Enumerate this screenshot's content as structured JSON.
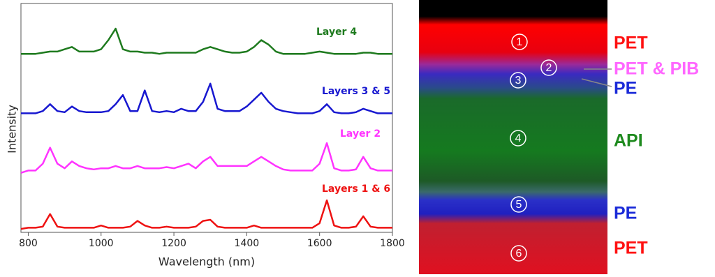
{
  "chart_data": {
    "type": "line",
    "xlabel": "Wavelength (nm)",
    "ylabel": "Intensity",
    "xlim": [
      780,
      1800
    ],
    "xticks": [
      800,
      1000,
      1200,
      1400,
      1600,
      1800
    ],
    "ylim": [
      0,
      100
    ],
    "x": [
      780,
      800,
      820,
      840,
      860,
      880,
      900,
      920,
      940,
      960,
      980,
      1000,
      1020,
      1040,
      1060,
      1080,
      1100,
      1120,
      1140,
      1160,
      1180,
      1200,
      1220,
      1240,
      1260,
      1280,
      1300,
      1320,
      1340,
      1360,
      1380,
      1400,
      1420,
      1440,
      1460,
      1480,
      1500,
      1520,
      1540,
      1560,
      1580,
      1600,
      1620,
      1640,
      1660,
      1680,
      1700,
      1720,
      1740,
      1760,
      1780,
      1800
    ],
    "series": [
      {
        "name": "Layer 4",
        "color": "#1e7a1e",
        "values": [
          78,
          78,
          78,
          78.5,
          79,
          79,
          80,
          81,
          79,
          79,
          79,
          80,
          84,
          89,
          80,
          79,
          79,
          78.5,
          78.5,
          78,
          78.5,
          78.5,
          78.5,
          78.5,
          78.5,
          80,
          81,
          80,
          79,
          78.5,
          78.5,
          79,
          81,
          84,
          82,
          79,
          78,
          78,
          78,
          78,
          78.5,
          79,
          78.5,
          78,
          78,
          78,
          78,
          78.5,
          78.5,
          78,
          78,
          78
        ]
      },
      {
        "name": "Layers 3 & 5",
        "color": "#1818d0",
        "values": [
          52,
          52,
          52,
          53,
          56,
          53,
          52.5,
          55,
          53,
          52.5,
          52.5,
          52.5,
          53,
          56,
          60,
          53,
          53,
          62,
          53,
          52.5,
          53,
          52.5,
          54,
          53,
          53,
          57,
          65,
          54,
          53,
          53,
          53,
          55,
          58,
          61,
          57,
          54,
          53,
          52.5,
          52,
          52,
          52,
          53,
          56,
          52.5,
          52,
          52,
          52.5,
          54,
          53,
          52,
          52,
          52
        ]
      },
      {
        "name": "Layer 2",
        "color": "#ff33ff",
        "values": [
          26,
          27,
          27,
          30,
          37,
          30,
          28,
          31,
          29,
          28,
          27.5,
          28,
          28,
          29,
          28,
          28,
          29,
          28,
          28,
          28,
          28.5,
          28,
          29,
          30,
          28,
          31,
          33,
          29,
          29,
          29,
          29,
          29,
          31,
          33,
          31,
          29,
          27.5,
          27,
          27,
          27,
          27,
          30,
          39,
          28,
          27,
          27,
          27.5,
          33,
          28,
          27,
          27,
          27
        ]
      },
      {
        "name": "Layers 1 & 6",
        "color": "#ee1111",
        "values": [
          1.5,
          2,
          2,
          2.5,
          8,
          2.5,
          2,
          2,
          2,
          2,
          2,
          3,
          2,
          2,
          2,
          2.5,
          5,
          3,
          2,
          2,
          2.5,
          2,
          2,
          2,
          2.5,
          5,
          5.5,
          2.5,
          2,
          2,
          2,
          2,
          3,
          2,
          2,
          2,
          2,
          2,
          2,
          2,
          2,
          4,
          14,
          3,
          2,
          2,
          2.5,
          7,
          2.5,
          2,
          2,
          2
        ]
      }
    ]
  },
  "layer_image": {
    "markers": [
      "1",
      "2",
      "3",
      "4",
      "5",
      "6"
    ],
    "labels": [
      {
        "text": "PET",
        "color": "#ff1010"
      },
      {
        "text": "PET & PIB",
        "color": "#ff66ff"
      },
      {
        "text": "PE",
        "color": "#1a2ad8"
      },
      {
        "text": "API",
        "color": "#1e8a1e"
      },
      {
        "text": "PE",
        "color": "#1a2ad8"
      },
      {
        "text": "PET",
        "color": "#ff1010"
      }
    ]
  }
}
